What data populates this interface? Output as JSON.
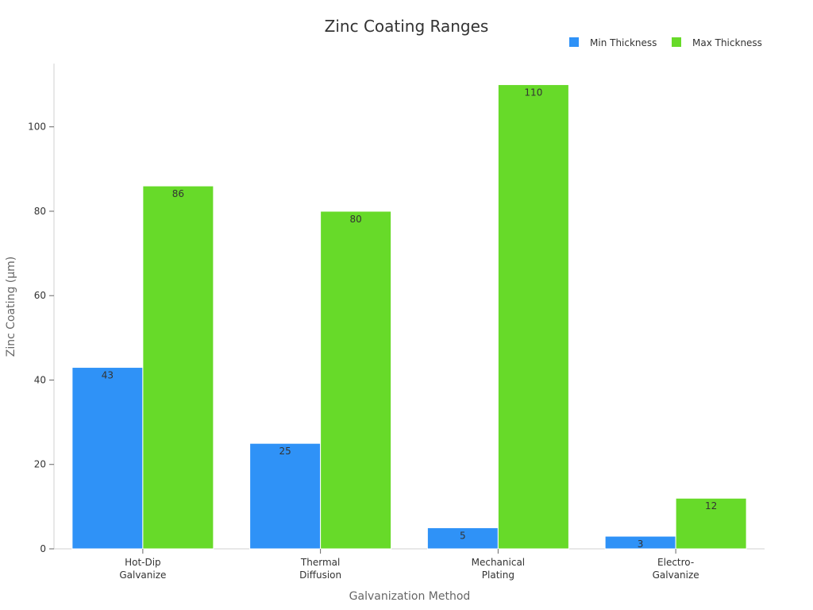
{
  "chart_data": {
    "type": "bar",
    "title": "Zinc Coating Ranges",
    "xlabel": "Galvanization Method",
    "ylabel": "Zinc Coating (µm)",
    "categories": [
      [
        "Hot-Dip",
        "Galvanize"
      ],
      [
        "Thermal",
        "Diffusion"
      ],
      [
        "Mechanical",
        "Plating"
      ],
      [
        "Electro-",
        "Galvanize"
      ]
    ],
    "series": [
      {
        "name": "Min Thickness",
        "color": "#2f92f7",
        "values": [
          43,
          25,
          5,
          3
        ]
      },
      {
        "name": "Max Thickness",
        "color": "#67da29",
        "values": [
          86,
          80,
          110,
          12
        ]
      }
    ],
    "ylim": [
      0,
      115
    ],
    "yticks": [
      0,
      20,
      40,
      60,
      80,
      100
    ],
    "grid": false,
    "legend": "top-right"
  }
}
